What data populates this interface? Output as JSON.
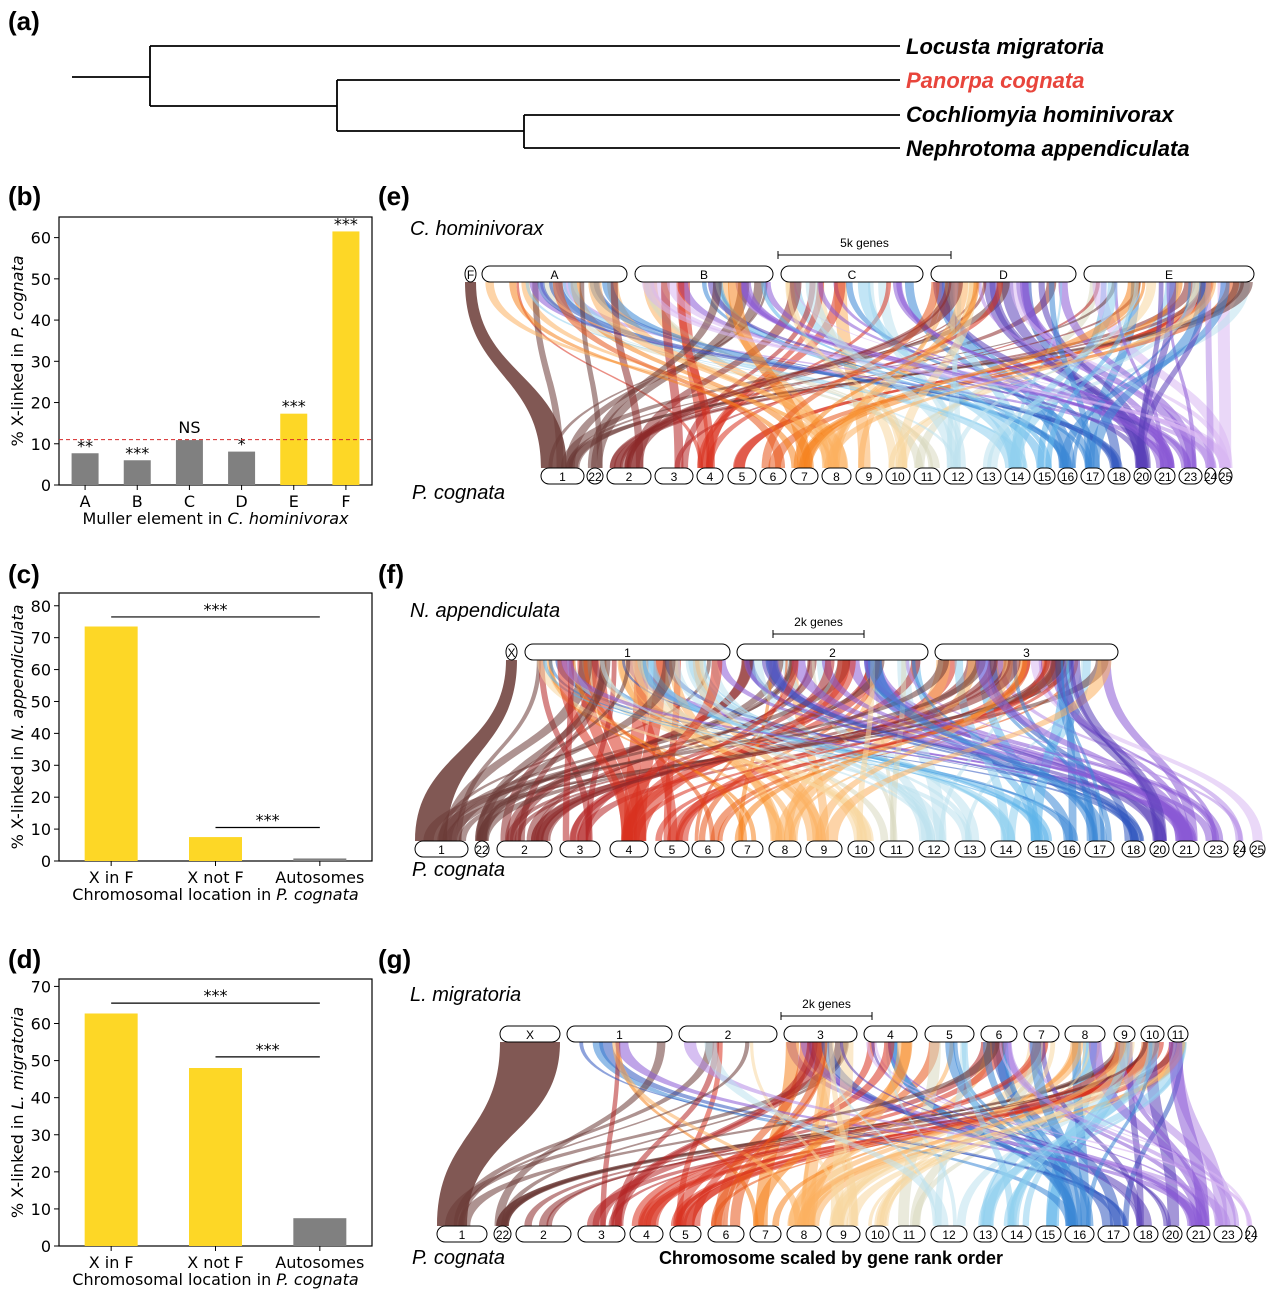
{
  "panels": {
    "a": "(a)",
    "b": "(b)",
    "c": "(c)",
    "d": "(d)",
    "e": "(e)",
    "f": "(f)",
    "g": "(g)"
  },
  "tree": {
    "taxa": [
      "Locusta migratoria",
      "Panorpa cognata",
      "Cochliomyia hominivorax",
      "Nephrotoma appendiculata"
    ],
    "highlight_color": "#e8453c"
  },
  "chart_data": [
    {
      "panel": "b",
      "type": "bar",
      "categories": [
        "A",
        "B",
        "C",
        "D",
        "E",
        "F"
      ],
      "values": [
        7.7,
        6.0,
        10.9,
        8.1,
        17.3,
        61.5
      ],
      "colors": [
        "#808080",
        "#808080",
        "#808080",
        "#808080",
        "#fdd726",
        "#fdd726"
      ],
      "significance": [
        "**",
        "***",
        "NS",
        "*",
        "***",
        "***"
      ],
      "reference_line": 11.0,
      "reference_color": "#d62728",
      "xlabel_parts": [
        "Muller element in ",
        "C. hominivorax"
      ],
      "ylabel_parts": [
        "% X-linked in ",
        "P. cognata"
      ],
      "yticks": [
        0,
        10,
        20,
        30,
        40,
        50,
        60
      ],
      "ylim": [
        0,
        65
      ]
    },
    {
      "panel": "c",
      "type": "bar",
      "categories": [
        "X in F",
        "X not F",
        "Autosomes"
      ],
      "values": [
        73.5,
        7.5,
        0.8
      ],
      "colors": [
        "#fdd726",
        "#fdd726",
        "#808080"
      ],
      "brackets": [
        {
          "from": 0,
          "to": 2,
          "y": 76.5,
          "label": "***"
        },
        {
          "from": 1,
          "to": 2,
          "y": 10.5,
          "label": "***"
        }
      ],
      "xlabel_parts": [
        "Chromosomal location in ",
        "P. cognata"
      ],
      "ylabel_parts": [
        "% X-linked in ",
        "N. appendiculata"
      ],
      "yticks": [
        0,
        10,
        20,
        30,
        40,
        50,
        60,
        70,
        80
      ],
      "ylim": [
        0,
        84
      ]
    },
    {
      "panel": "d",
      "type": "bar",
      "categories": [
        "X in F",
        "X not F",
        "Autosomes"
      ],
      "values": [
        62.7,
        48.0,
        7.5
      ],
      "colors": [
        "#fdd726",
        "#fdd726",
        "#808080"
      ],
      "brackets": [
        {
          "from": 0,
          "to": 2,
          "y": 65.5,
          "label": "***"
        },
        {
          "from": 1,
          "to": 2,
          "y": 51.0,
          "label": "***"
        }
      ],
      "xlabel_parts": [
        "Chromosomal location in ",
        "P. cognata"
      ],
      "ylabel_parts": [
        "% X-linked in ",
        "L. migratoria"
      ],
      "yticks": [
        0,
        10,
        20,
        30,
        40,
        50,
        60,
        70
      ],
      "ylim": [
        0,
        72
      ]
    }
  ],
  "synteny": [
    {
      "panel": "e",
      "top_species": "C. hominivorax",
      "bottom_species": "P. cognata",
      "scale_label": "5k genes",
      "top_chroms": [
        "F",
        "A",
        "B",
        "C",
        "D",
        "E"
      ],
      "bottom_chroms": [
        "1",
        "22",
        "2",
        "3",
        "4",
        "5",
        "6",
        "7",
        "8",
        "9",
        "10",
        "11",
        "12",
        "13",
        "14",
        "15",
        "16",
        "17",
        "18",
        "20",
        "21",
        "23",
        "24",
        "25"
      ]
    },
    {
      "panel": "f",
      "top_species": "N. appendiculata",
      "bottom_species": "P. cognata",
      "scale_label": "2k genes",
      "top_chroms": [
        "X",
        "1",
        "2",
        "3"
      ],
      "bottom_chroms": [
        "1",
        "22",
        "2",
        "3",
        "4",
        "5",
        "6",
        "7",
        "8",
        "9",
        "10",
        "11",
        "12",
        "13",
        "14",
        "15",
        "16",
        "17",
        "18",
        "20",
        "21",
        "23",
        "24",
        "25"
      ]
    },
    {
      "panel": "g",
      "top_species": "L. migratoria",
      "bottom_species": "P. cognata",
      "scale_label": "2k genes",
      "top_chroms": [
        "X",
        "1",
        "2",
        "3",
        "4",
        "5",
        "6",
        "7",
        "8",
        "9",
        "10",
        "11"
      ],
      "bottom_chroms": [
        "1",
        "22",
        "2",
        "3",
        "4",
        "5",
        "6",
        "7",
        "8",
        "9",
        "10",
        "11",
        "12",
        "13",
        "14",
        "15",
        "16",
        "17",
        "18",
        "20",
        "21",
        "23",
        "24"
      ],
      "footer": "Chromosome scaled by gene rank order"
    }
  ],
  "palette": [
    "#6b3b36",
    "#8c2a2a",
    "#b52424",
    "#d9321f",
    "#e8551a",
    "#f5841f",
    "#fbb161",
    "#f7d7a0",
    "#d8d8c0",
    "#bde2ef",
    "#8fd0ef",
    "#5fb4ea",
    "#3b86d6",
    "#3158c0",
    "#5a40b8",
    "#8a5ad6",
    "#b48ae6",
    "#d9b8f2"
  ]
}
